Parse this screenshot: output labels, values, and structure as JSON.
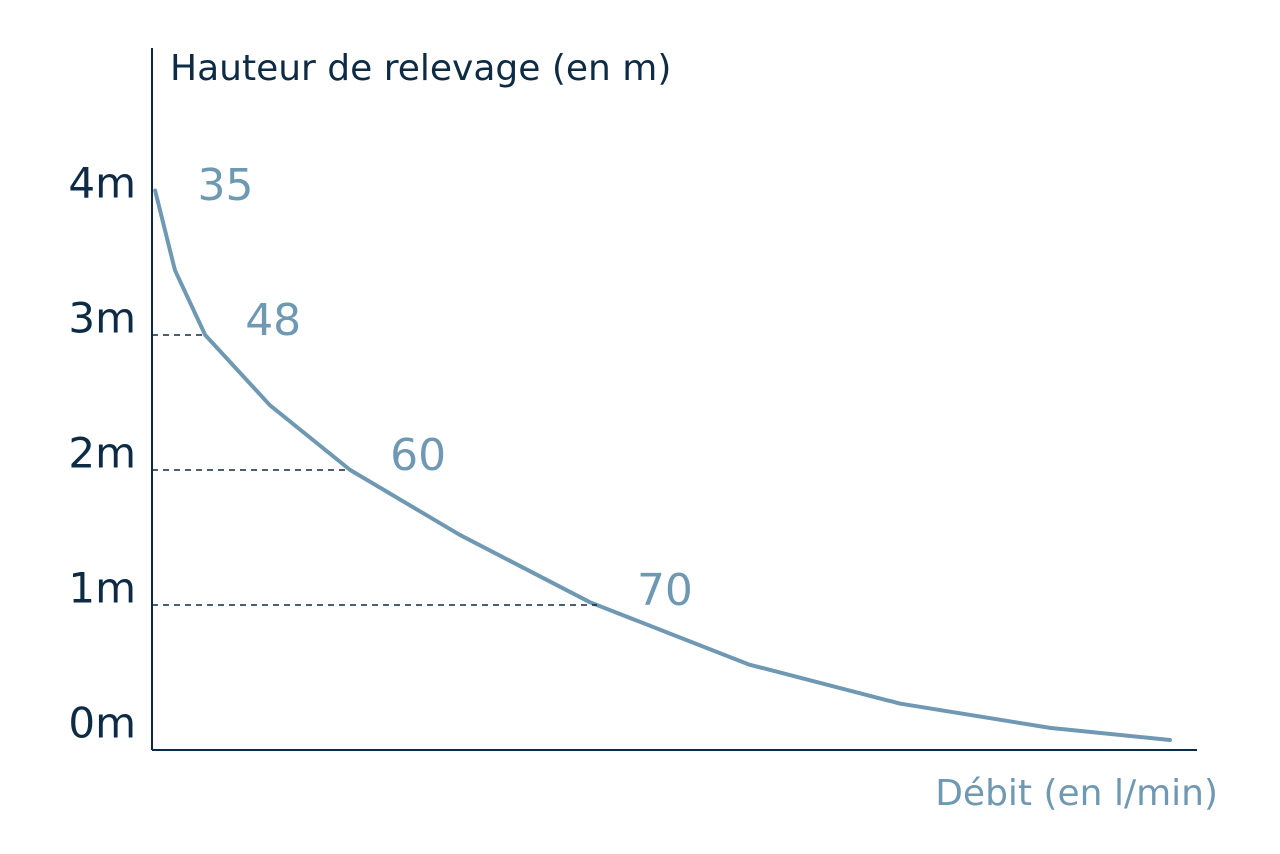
{
  "chart_data": {
    "type": "line",
    "title": "Hauteur de relevage (en m)",
    "x_label": "Débit (en l/min)",
    "x": [
      0.3,
      2.2,
      5.1,
      11.3,
      19,
      29.5,
      42,
      57.2,
      71.7,
      86.1,
      97.6
    ],
    "series": [
      {
        "color": "#6f98b3",
        "values": [
          4.07,
          3.48,
          3.0,
          2.48,
          2.0,
          1.52,
          1.02,
          0.56,
          0.27,
          0.09,
          0.0
        ]
      }
    ],
    "xlim": [
      0,
      100
    ],
    "ylim": [
      0,
      5
    ],
    "yticks": [
      {
        "value": 0,
        "label": "0m"
      },
      {
        "value": 1,
        "label": "1m"
      },
      {
        "value": 2,
        "label": "2m"
      },
      {
        "value": 3,
        "label": "3m"
      },
      {
        "value": 4,
        "label": "4m"
      }
    ],
    "flow_markers": [
      {
        "height": 4,
        "flow": 35,
        "guide": false
      },
      {
        "height": 3,
        "flow": 48,
        "guide": true
      },
      {
        "height": 2,
        "flow": 60,
        "guide": true
      },
      {
        "height": 1,
        "flow": 70,
        "guide": true
      }
    ],
    "axis_color": "#0d2b45"
  }
}
